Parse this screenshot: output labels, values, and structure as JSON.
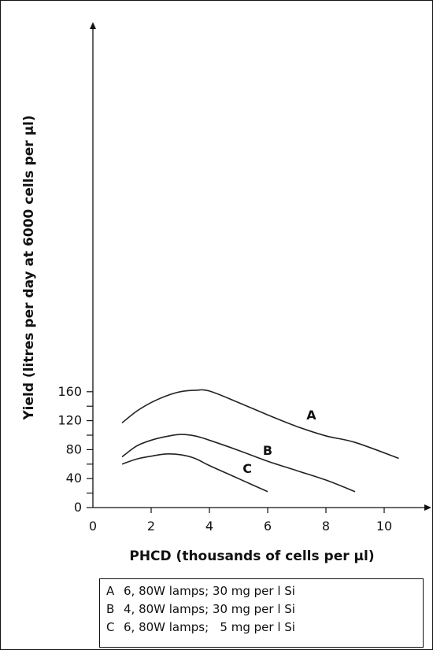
{
  "chart_data": {
    "type": "line",
    "xlabel": "PHCD (thousands of cells per µl)",
    "ylabel": "Yield (litres per day at 6000 cells per µl)",
    "xlim": [
      0,
      11.5
    ],
    "ylim": [
      0,
      170
    ],
    "x_ticks": [
      0,
      2,
      4,
      6,
      8,
      10
    ],
    "y_ticks": [
      0,
      40,
      80,
      120,
      160
    ],
    "y_minor_ticks": [
      20,
      60,
      100,
      140
    ],
    "grid": false,
    "legend_position": "below",
    "series": [
      {
        "name": "A",
        "points": [
          [
            1,
            117
          ],
          [
            1.5,
            133
          ],
          [
            2,
            145
          ],
          [
            2.5,
            154
          ],
          [
            3,
            160
          ],
          [
            3.5,
            162
          ],
          [
            4,
            161
          ],
          [
            5,
            145
          ],
          [
            6,
            128
          ],
          [
            7,
            112
          ],
          [
            8,
            99
          ],
          [
            9,
            90
          ],
          [
            10.5,
            68
          ]
        ]
      },
      {
        "name": "B",
        "points": [
          [
            1,
            70
          ],
          [
            1.5,
            85
          ],
          [
            2,
            93
          ],
          [
            2.5,
            98
          ],
          [
            3,
            101
          ],
          [
            3.5,
            99
          ],
          [
            4,
            93
          ],
          [
            5,
            79
          ],
          [
            6,
            64
          ],
          [
            7,
            51
          ],
          [
            8,
            38
          ],
          [
            9,
            22
          ]
        ]
      },
      {
        "name": "C",
        "points": [
          [
            1,
            60
          ],
          [
            1.5,
            67
          ],
          [
            2,
            71
          ],
          [
            2.5,
            74
          ],
          [
            3,
            73
          ],
          [
            3.5,
            68
          ],
          [
            4,
            58
          ],
          [
            5,
            40
          ],
          [
            6,
            22
          ]
        ]
      }
    ],
    "curve_labels": [
      {
        "text": "A",
        "x": 7.5,
        "y": 122
      },
      {
        "text": "B",
        "x": 6.0,
        "y": 73
      },
      {
        "text": "C",
        "x": 5.3,
        "y": 48
      }
    ],
    "line_color": "#222222"
  },
  "legend": {
    "items": [
      {
        "key": "A",
        "text": "6, 80W lamps; 30 mg per l Si"
      },
      {
        "key": "B",
        "text": "4, 80W lamps; 30 mg per l Si"
      },
      {
        "key": "C",
        "text": "6, 80W lamps;   5 mg per l Si"
      }
    ]
  }
}
